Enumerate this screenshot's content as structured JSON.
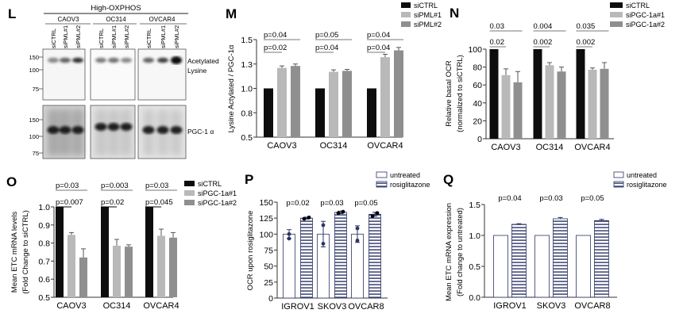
{
  "panels": {
    "L": "L",
    "M": "M",
    "N": "N",
    "O": "O",
    "P": "P",
    "Q": "Q"
  },
  "blot": {
    "group_title": "High-OXPHOS",
    "cell_lines": [
      "CAOV3",
      "OC314",
      "OVCAR4"
    ],
    "lanes": [
      "siCTRL",
      "siPML#1",
      "siPML#2",
      "siCTRL",
      "siPML#1",
      "siPML#2",
      "siCTRL",
      "siPML#1",
      "siPML#2"
    ],
    "mw_markers": [
      "150",
      "100",
      "75"
    ],
    "top_label_1": "Acetylated",
    "top_label_2": "Lysine",
    "bottom_label": "PGC-1 α"
  },
  "colors": {
    "ctrl": "#0d0d0d",
    "s1": "#b9b9b9",
    "s2": "#8f8f8f",
    "hatch": "#2c3566",
    "axis": "#333333"
  },
  "chart_data": [
    {
      "id": "M",
      "type": "bar",
      "title": "",
      "ylabel": [
        "Lysine Actylated / PGC-1α"
      ],
      "categories": [
        "CAOV3",
        "OC314",
        "OVCAR4"
      ],
      "ylim": [
        0.5,
        1.5
      ],
      "yticks": [
        0.5,
        0.75,
        1.0,
        1.25,
        1.5
      ],
      "ytick_labels": [
        "0.5",
        "0.8",
        "1.0",
        "1.3",
        "1.5"
      ],
      "legend": "top-right",
      "series": [
        {
          "name": "siCTRL",
          "color": "ctrl",
          "values": [
            1.0,
            1.0,
            1.0
          ],
          "errors": [
            0,
            0,
            0
          ]
        },
        {
          "name": "siPML#1",
          "color": "s1",
          "values": [
            1.21,
            1.17,
            1.32
          ],
          "errors": [
            0.02,
            0.02,
            0.03
          ]
        },
        {
          "name": "siPML#2",
          "color": "s2",
          "values": [
            1.23,
            1.18,
            1.39
          ],
          "errors": [
            0.02,
            0.015,
            0.03
          ]
        }
      ],
      "annotations": [
        {
          "row": 0,
          "from": 0,
          "to": 2,
          "texts": [
            "p=0.04",
            "p=0.05",
            "p=0.04"
          ]
        },
        {
          "row": 1,
          "from": 0,
          "to": 1,
          "texts": [
            "p=0.02",
            "p=0.04",
            "p=0.04"
          ]
        }
      ]
    },
    {
      "id": "N",
      "type": "bar",
      "title": "",
      "ylabel": [
        "Relative basal OCR",
        "(normalized to siCTRL)"
      ],
      "categories": [
        "CAOV3",
        "OC314",
        "OVCAR4"
      ],
      "ylim": [
        0,
        100
      ],
      "yticks": [
        0,
        20,
        40,
        60,
        80,
        100
      ],
      "ytick_labels": [
        "0",
        "20",
        "40",
        "60",
        "80",
        "100"
      ],
      "legend": "top-right",
      "series": [
        {
          "name": "siCTRL",
          "color": "ctrl",
          "values": [
            100,
            100,
            100
          ],
          "errors": [
            0,
            0,
            0
          ]
        },
        {
          "name": "siPGC-1a#1",
          "color": "s1",
          "values": [
            71,
            82,
            77
          ],
          "errors": [
            7,
            3,
            2
          ]
        },
        {
          "name": "siPGC-1a#2",
          "color": "s2",
          "values": [
            63,
            75,
            78
          ],
          "errors": [
            12,
            5,
            7
          ]
        }
      ],
      "annotations": [
        {
          "row": 0,
          "from": 0,
          "to": 2,
          "texts": [
            "0.03",
            "0.004",
            "0.035"
          ]
        },
        {
          "row": 1,
          "from": 0,
          "to": 1,
          "texts": [
            "0.02",
            "0.002",
            "0.002"
          ]
        }
      ]
    },
    {
      "id": "O",
      "type": "bar",
      "title": "",
      "ylabel": [
        "Mean ETC mRNA levels",
        "(Fold Change to siCTRL)"
      ],
      "categories": [
        "CAOV3",
        "OC314",
        "OVCAR4"
      ],
      "ylim": [
        0.5,
        1.0
      ],
      "yticks": [
        0.5,
        0.6,
        0.7,
        0.8,
        0.9,
        1.0
      ],
      "ytick_labels": [
        "0.5",
        "0.6",
        "0.7",
        "0.8",
        "0.9",
        "1.0"
      ],
      "legend": "right",
      "series": [
        {
          "name": "siCTRL",
          "color": "ctrl",
          "values": [
            1.0,
            1.0,
            1.0
          ],
          "errors": [
            0,
            0,
            0
          ]
        },
        {
          "name": "siPGC-1a#1",
          "color": "s1",
          "values": [
            0.845,
            0.785,
            0.84
          ],
          "errors": [
            0.013,
            0.035,
            0.037
          ]
        },
        {
          "name": "siPGC-1a#2",
          "color": "s2",
          "values": [
            0.72,
            0.78,
            0.83
          ],
          "errors": [
            0.048,
            0.01,
            0.028
          ]
        }
      ],
      "annotations": [
        {
          "row": 0,
          "from": 0,
          "to": 2,
          "texts": [
            "p=0.03",
            "p=0.003",
            "p=0.03"
          ]
        },
        {
          "row": 1,
          "from": 0,
          "to": 1,
          "texts": [
            "p=0.007",
            "p=0.02",
            "p=0.045"
          ]
        }
      ]
    },
    {
      "id": "P",
      "type": "bar",
      "title": "",
      "ylabel": [
        "OCR upon rosiglitazone"
      ],
      "categories": [
        "IGROV1",
        "SKOV3",
        "OVCAR8"
      ],
      "ylim": [
        0,
        150
      ],
      "yticks": [
        0,
        25,
        50,
        75,
        100,
        125,
        150
      ],
      "ytick_labels": [
        "0",
        "25",
        "50",
        "75",
        "100",
        "125",
        "150"
      ],
      "legend": "top-right",
      "series": [
        {
          "name": "untreated",
          "color": "white",
          "values": [
            100,
            100,
            100
          ],
          "errors": [
            7,
            20,
            13
          ],
          "points": [
            [
              93,
              100
            ],
            [
              85,
              114
            ],
            [
              90,
              109
            ]
          ]
        },
        {
          "name": "rosiglitazone",
          "color": "hatch",
          "values": [
            125,
            134,
            131
          ],
          "errors": [
            1.5,
            2,
            3
          ],
          "points": [
            [
              124,
              126
            ],
            [
              133,
              135
            ],
            [
              128,
              133
            ]
          ]
        }
      ],
      "annotations": [
        {
          "row": 0,
          "from": null,
          "to": null,
          "texts": [
            "p=0.02",
            "p=0.03",
            "p=0.05"
          ]
        }
      ]
    },
    {
      "id": "Q",
      "type": "bar",
      "title": "",
      "ylabel": [
        "Mean ETC mRNA expression",
        "(Fold change to untreated)"
      ],
      "categories": [
        "IGROV1",
        "SKOV3",
        "OVCAR8"
      ],
      "ylim": [
        0,
        1.5
      ],
      "yticks": [
        0,
        0.5,
        1.0,
        1.5
      ],
      "ytick_labels": [
        "0.0",
        "0.5",
        "1.0",
        "1.5"
      ],
      "legend": "top-right",
      "series": [
        {
          "name": "untreated",
          "color": "white",
          "values": [
            1.0,
            1.0,
            1.0
          ],
          "errors": [
            0,
            0,
            0
          ]
        },
        {
          "name": "rosiglitazone",
          "color": "hatch",
          "values": [
            1.18,
            1.27,
            1.24
          ],
          "errors": [
            0.01,
            0.02,
            0.02
          ]
        }
      ],
      "annotations": [
        {
          "row": 0,
          "from": null,
          "to": null,
          "texts": [
            "p=0.04",
            "p=0.03",
            "p=0.05"
          ]
        }
      ]
    }
  ]
}
